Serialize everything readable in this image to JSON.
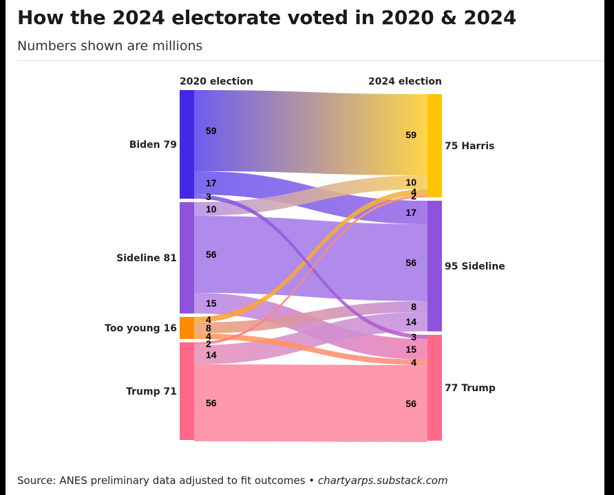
{
  "header": {
    "title": "How the 2024 electorate voted in 2020 & 2024",
    "subtitle": "Numbers shown are millions"
  },
  "footer": {
    "source": "Source: ANES preliminary data adjusted to fit outcomes • ",
    "site": "chartyarps.substack.com"
  },
  "chart_data": {
    "type": "sankey",
    "units": "millions",
    "left_axis_title": "2020 election",
    "right_axis_title": "2024 election",
    "left_nodes": [
      {
        "id": "biden",
        "label": "Biden 79",
        "value": 79,
        "color": "#4329e6"
      },
      {
        "id": "sideline20",
        "label": "Sideline 81",
        "value": 81,
        "color": "#8f52dd"
      },
      {
        "id": "young",
        "label": "Too young 16",
        "value": 16,
        "color": "#ff8c00"
      },
      {
        "id": "trump20",
        "label": "Trump 71",
        "value": 71,
        "color": "#ff6888"
      }
    ],
    "right_nodes": [
      {
        "id": "harris",
        "label": "75 Harris",
        "value": 75,
        "color": "#ffc400"
      },
      {
        "id": "sideline24",
        "label": "95 Sideline",
        "value": 95,
        "color": "#8f52dd"
      },
      {
        "id": "trump24",
        "label": "77 Trump",
        "value": 77,
        "color": "#ff6888"
      }
    ],
    "flows": [
      {
        "from": "biden",
        "to": "harris",
        "value": 59,
        "from_color": "#5a45ee",
        "to_color": "#ffcf30"
      },
      {
        "from": "biden",
        "to": "sideline24",
        "value": 17,
        "from_color": "#6a55ee",
        "to_color": "#9a6be6"
      },
      {
        "from": "biden",
        "to": "trump24",
        "value": 3,
        "from_color": "#7a55e8",
        "to_color": "#c060c8"
      },
      {
        "from": "sideline20",
        "to": "harris",
        "value": 10,
        "from_color": "#b690e8",
        "to_color": "#f8cc55"
      },
      {
        "from": "sideline20",
        "to": "sideline24",
        "value": 56,
        "from_color": "#a57be8",
        "to_color": "#a57be8"
      },
      {
        "from": "sideline20",
        "to": "trump24",
        "value": 15,
        "from_color": "#b58ae8",
        "to_color": "#f080b0"
      },
      {
        "from": "young",
        "to": "harris",
        "value": 4,
        "from_color": "#ffa030",
        "to_color": "#f0b440"
      },
      {
        "from": "young",
        "to": "sideline24",
        "value": 8,
        "from_color": "#f0a070",
        "to_color": "#c08ae0"
      },
      {
        "from": "young",
        "to": "trump24",
        "value": 4,
        "from_color": "#ff9a50",
        "to_color": "#ff8a80"
      },
      {
        "from": "trump20",
        "to": "harris",
        "value": 2,
        "from_color": "#ff7a88",
        "to_color": "#f49a70"
      },
      {
        "from": "trump20",
        "to": "sideline24",
        "value": 14,
        "from_color": "#e890b8",
        "to_color": "#c090e0"
      },
      {
        "from": "trump20",
        "to": "trump24",
        "value": 56,
        "from_color": "#ff8aa0",
        "to_color": "#ff8aa0"
      }
    ]
  }
}
